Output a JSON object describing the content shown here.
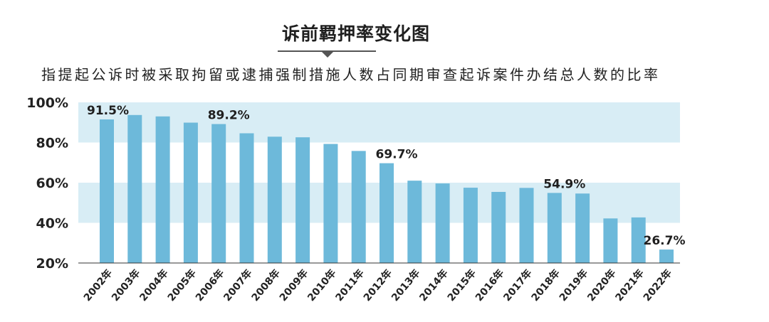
{
  "title": "诉前羁押率变化图",
  "subtitle": "指提起公诉时被采取拘留或逮捕强制措施人数占同期审查起诉案件办结总人数的比率",
  "chart_data": {
    "type": "bar",
    "categories": [
      "2002年",
      "2003年",
      "2004年",
      "2005年",
      "2006年",
      "2007年",
      "2008年",
      "2009年",
      "2010年",
      "2011年",
      "2012年",
      "2013年",
      "2014年",
      "2015年",
      "2016年",
      "2017年",
      "2018年",
      "2019年",
      "2020年",
      "2021年",
      "2022年"
    ],
    "values": [
      91.5,
      93.7,
      93.0,
      89.9,
      89.2,
      84.6,
      82.9,
      82.6,
      79.3,
      75.8,
      69.7,
      61.0,
      59.6,
      57.5,
      55.4,
      57.4,
      54.9,
      54.6,
      42.2,
      42.7,
      26.7
    ],
    "data_labels": [
      {
        "category": "2002年",
        "text": "91.5%"
      },
      {
        "category": "2006年",
        "text": "89.2%"
      },
      {
        "category": "2012年",
        "text": "69.7%"
      },
      {
        "category": "2018年",
        "text": "54.9%"
      },
      {
        "category": "2022年",
        "text": "26.7%"
      }
    ],
    "yticks": [
      "100%",
      "80%",
      "60%",
      "40%",
      "20%"
    ],
    "ytick_values": [
      100,
      80,
      60,
      40,
      20
    ],
    "ylim": [
      20,
      100
    ],
    "bands": [
      [
        80,
        100
      ],
      [
        40,
        60
      ]
    ],
    "colors": {
      "bar": "#6db9da",
      "band": "#d8edf5",
      "axis": "#333333"
    }
  }
}
